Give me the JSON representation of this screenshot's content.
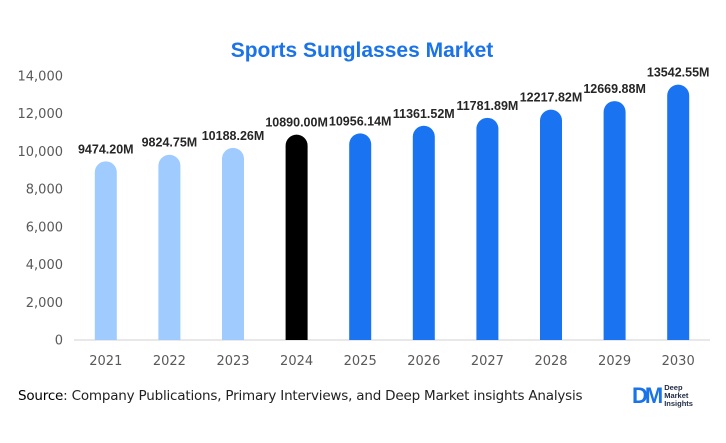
{
  "chart_data": {
    "type": "bar",
    "title": "Sports Sunglasses Market",
    "categories": [
      "2021",
      "2022",
      "2023",
      "2024",
      "2025",
      "2026",
      "2027",
      "2028",
      "2029",
      "2030"
    ],
    "values": [
      9474.2,
      9824.75,
      10188.26,
      10890.0,
      10956.14,
      11361.52,
      11781.89,
      12217.82,
      12669.88,
      13542.55
    ],
    "data_labels": [
      "9474.20M",
      "9824.75M",
      "10188.26M",
      "10890.00M",
      "10956.14M",
      "11361.52M",
      "11781.89M",
      "12217.82M",
      "12669.88M",
      "13542.55M"
    ],
    "bar_colors": [
      "#9fcbff",
      "#9fcbff",
      "#9fcbff",
      "#000000",
      "#1a73f0",
      "#1a73f0",
      "#1a73f0",
      "#1a73f0",
      "#1a73f0",
      "#1a73f0"
    ],
    "ylim": [
      0,
      14000
    ],
    "yticks": [
      0,
      2000,
      4000,
      6000,
      8000,
      10000,
      12000,
      14000
    ],
    "ytick_labels": [
      "0",
      "2,000",
      "4,000",
      "6,000",
      "8,000",
      "10,000",
      "12,000",
      "14,000"
    ],
    "xlabel": "",
    "ylabel": "",
    "grid": false,
    "title_color": "#1a73e8"
  },
  "footer": {
    "source_label": "Source",
    "source_text": ": Company Publications, Primary Interviews, and Deep Market insights Analysis"
  },
  "logo": {
    "mark": "DM",
    "line1": "Deep",
    "line2": "Market",
    "line3": "Insights"
  }
}
